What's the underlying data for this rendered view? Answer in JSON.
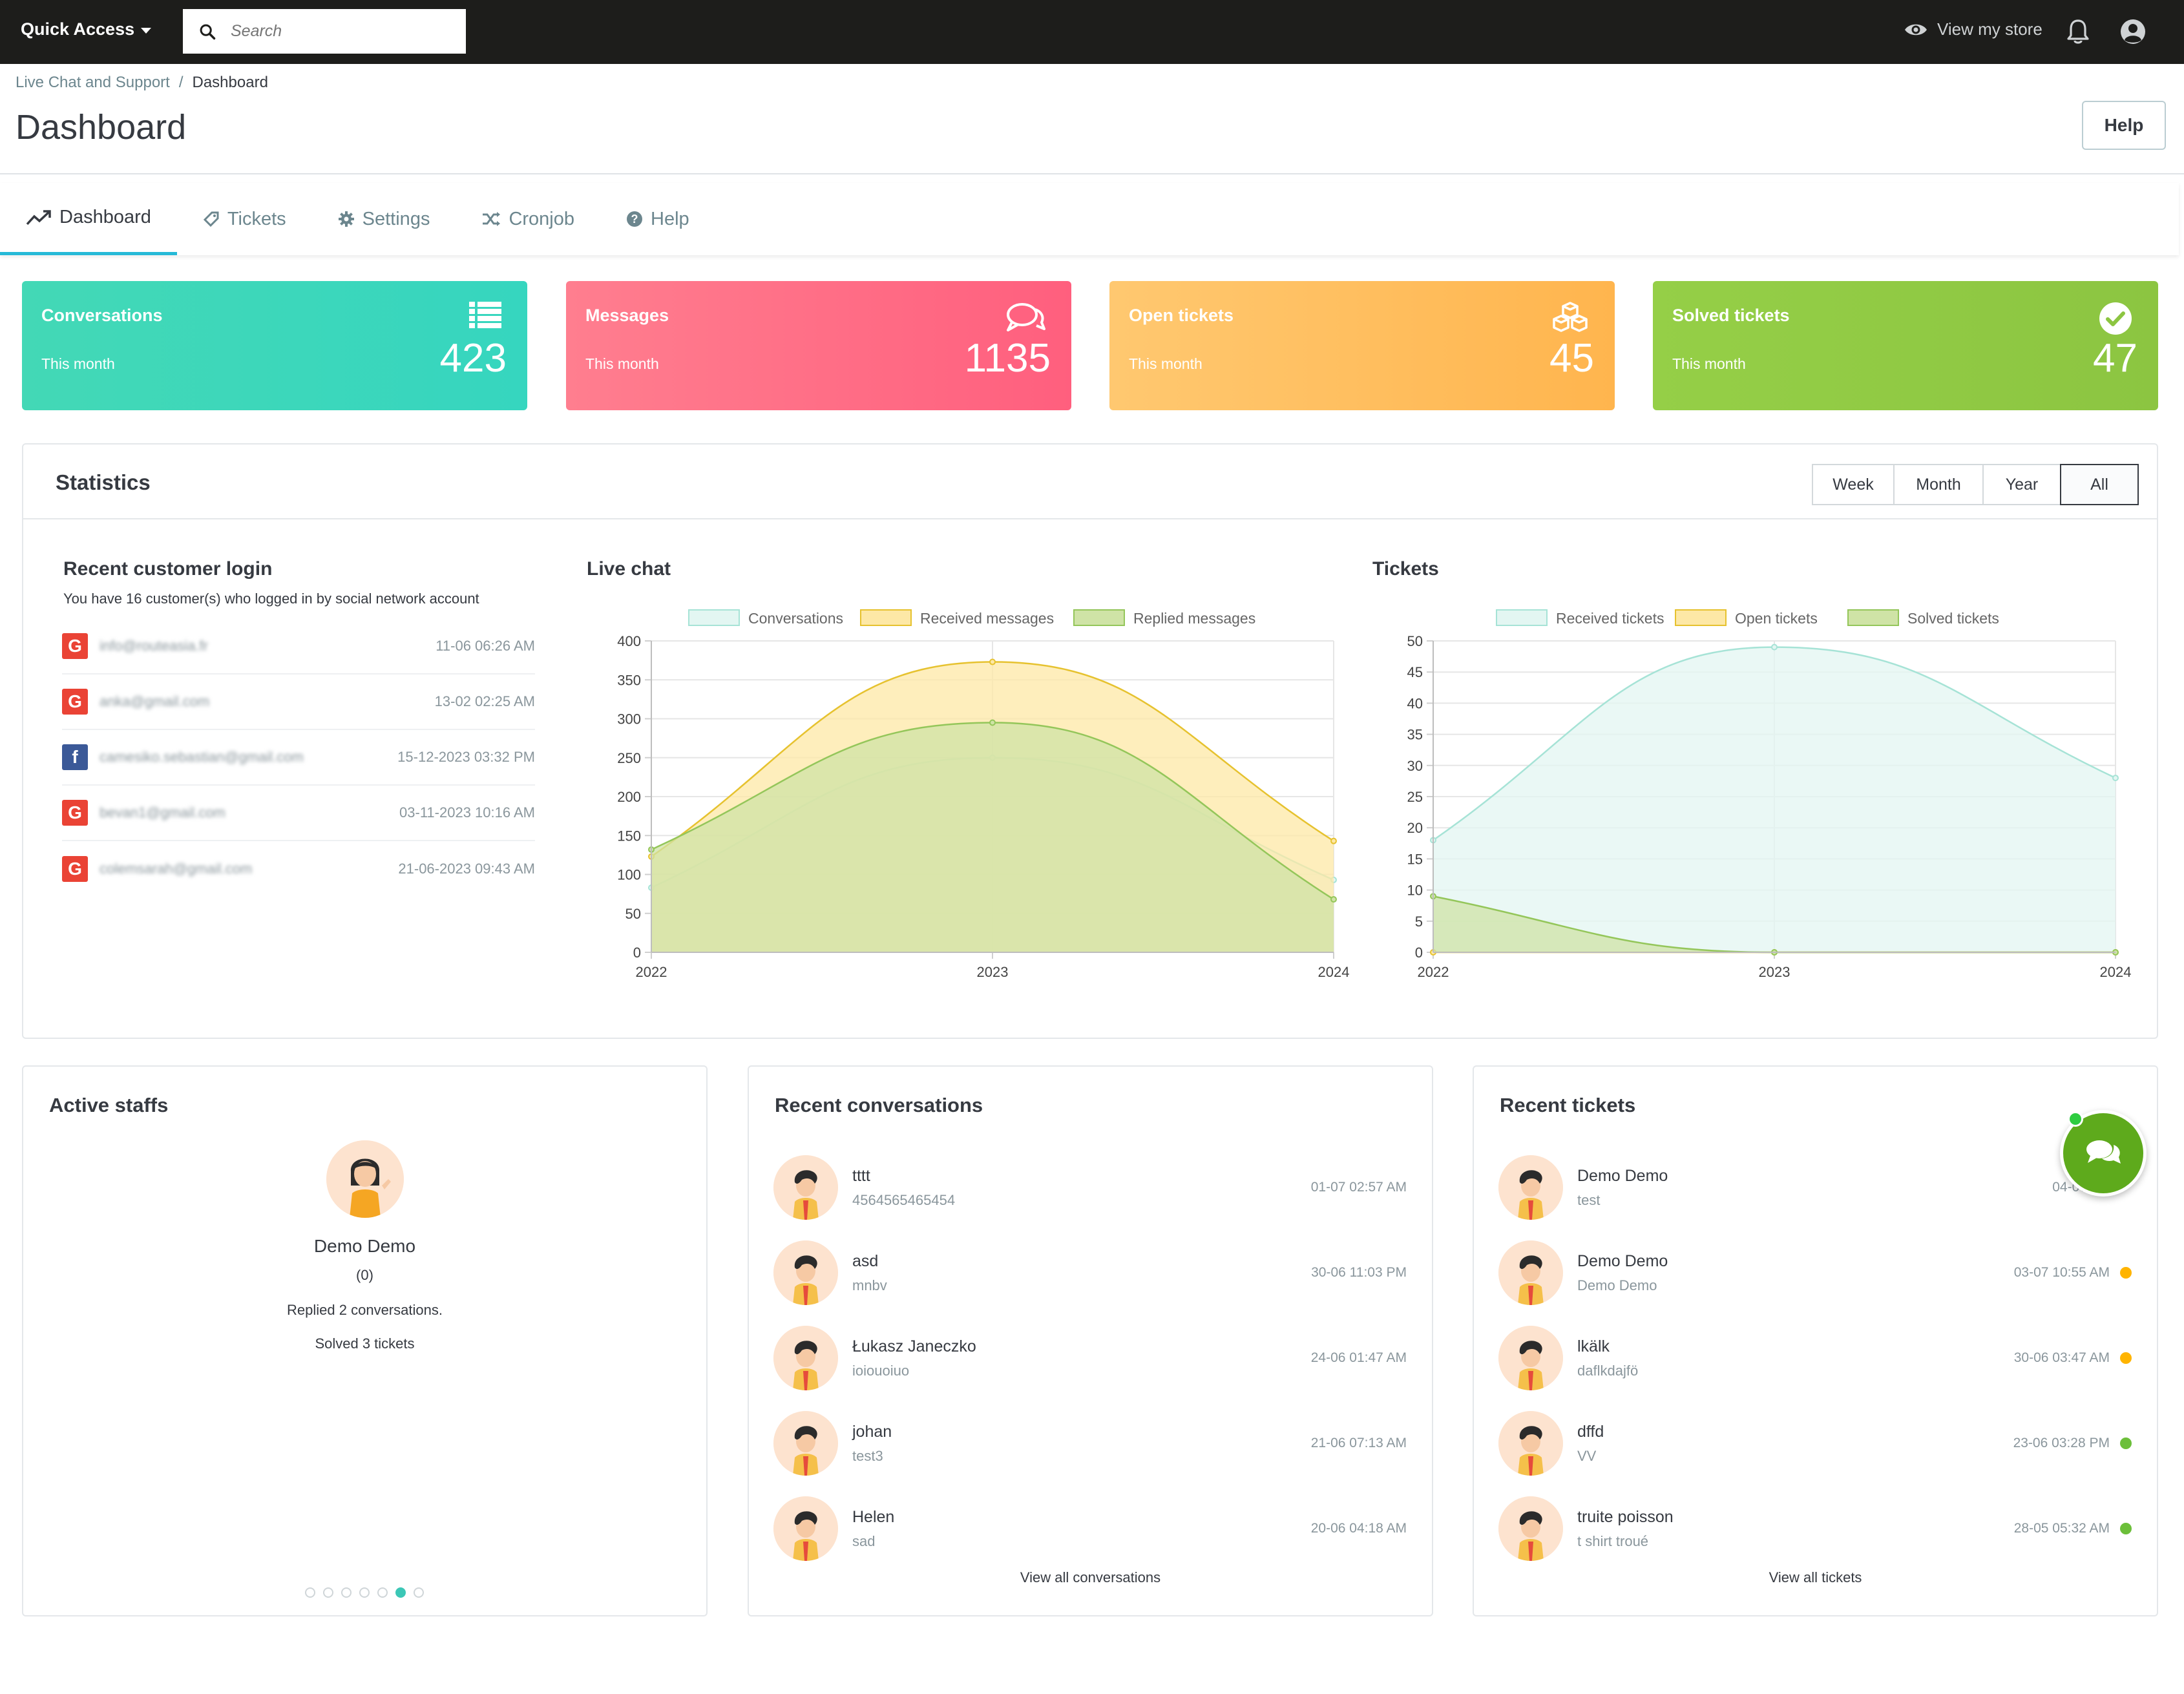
{
  "topbar": {
    "quick_access": "Quick Access",
    "search_placeholder": "Search",
    "view_store": "View my store"
  },
  "header": {
    "breadcrumb_parent": "Live Chat and Support",
    "breadcrumb_current": "Dashboard",
    "title": "Dashboard",
    "help_label": "Help"
  },
  "tabs": [
    {
      "label": "Dashboard",
      "icon": "trend-icon",
      "active": true
    },
    {
      "label": "Tickets",
      "icon": "tag-icon",
      "active": false
    },
    {
      "label": "Settings",
      "icon": "gear-icon",
      "active": false
    },
    {
      "label": "Cronjob",
      "icon": "shuffle-icon",
      "active": false
    },
    {
      "label": "Help",
      "icon": "question-icon",
      "active": false
    }
  ],
  "cards": [
    {
      "label": "Conversations",
      "sub": "This month",
      "value": "423",
      "icon": "list-icon",
      "color": "#3dd7bb"
    },
    {
      "label": "Messages",
      "sub": "This month",
      "value": "1135",
      "icon": "comments-icon",
      "color": "#ff6f86"
    },
    {
      "label": "Open tickets",
      "sub": "This month",
      "value": "45",
      "icon": "cubes-icon",
      "color": "#ffbf5f"
    },
    {
      "label": "Solved tickets",
      "sub": "This month",
      "value": "47",
      "icon": "check-circle-icon",
      "color": "#90ca44"
    }
  ],
  "statistics": {
    "title": "Statistics",
    "periods": [
      {
        "label": "Week",
        "active": false
      },
      {
        "label": "Month",
        "active": false
      },
      {
        "label": "Year",
        "active": false
      },
      {
        "label": "All",
        "active": true
      }
    ]
  },
  "recent_login": {
    "title": "Recent customer login",
    "description": "You have 16 customer(s) who logged in by social network account",
    "rows": [
      {
        "network": "google",
        "email": "info@routeasia.fr",
        "date": "11-06 06:26 AM"
      },
      {
        "network": "google",
        "email": "anka@gmail.com",
        "date": "13-02 02:25 AM"
      },
      {
        "network": "facebook",
        "email": "camesiko.sebastian@gmail.com",
        "date": "15-12-2023 03:32 PM"
      },
      {
        "network": "google",
        "email": "bevan1@gmail.com",
        "date": "03-11-2023 10:16 AM"
      },
      {
        "network": "google",
        "email": "colemsarah@gmail.com",
        "date": "21-06-2023 09:43 AM"
      }
    ]
  },
  "live_chat_title": "Live chat",
  "tickets_title": "Tickets",
  "chart_data": [
    {
      "type": "area",
      "title": "Live chat",
      "x": [
        "2022",
        "2023",
        "2024"
      ],
      "ylim": [
        0,
        400
      ],
      "yticks": [
        0,
        50,
        100,
        150,
        200,
        250,
        300,
        350,
        400
      ],
      "legend": "top",
      "series": [
        {
          "name": "Conversations",
          "values": [
            83,
            250,
            93
          ],
          "color": "#a6e3d6",
          "fill": "#e3f6f2"
        },
        {
          "name": "Received messages",
          "values": [
            123,
            373,
            143
          ],
          "color": "#e6c22f",
          "fill": "#fde8a6"
        },
        {
          "name": "Replied messages",
          "values": [
            132,
            295,
            68
          ],
          "color": "#94c65a",
          "fill": "#cfe3a6"
        }
      ]
    },
    {
      "type": "area",
      "title": "Tickets",
      "x": [
        "2022",
        "2023",
        "2024"
      ],
      "ylim": [
        0,
        50
      ],
      "yticks": [
        0,
        5,
        10,
        15,
        20,
        25,
        30,
        35,
        40,
        45,
        50
      ],
      "legend": "top",
      "series": [
        {
          "name": "Received tickets",
          "values": [
            18,
            49,
            28
          ],
          "color": "#a6e3d6",
          "fill": "#e3f6f2"
        },
        {
          "name": "Open tickets",
          "values": [
            0,
            0,
            0
          ],
          "color": "#e6c22f",
          "fill": "#fde8a6"
        },
        {
          "name": "Solved tickets",
          "values": [
            9,
            0,
            0
          ],
          "color": "#94c65a",
          "fill": "#cfe3a6"
        }
      ]
    }
  ],
  "active_staffs": {
    "title": "Active staffs",
    "name": "Demo Demo",
    "count": "(0)",
    "replied": "Replied 2 conversations.",
    "solved": "Solved 3 tickets",
    "active_slide": 6,
    "slides": 7
  },
  "recent_conversations": {
    "title": "Recent conversations",
    "rows": [
      {
        "name": "tttt",
        "sub": "4564565465454",
        "date": "01-07 02:57 AM"
      },
      {
        "name": "asd",
        "sub": "mnbv",
        "date": "30-06 11:03 PM"
      },
      {
        "name": "Łukasz Janeczko",
        "sub": "ioiouoiuo",
        "date": "24-06 01:47 AM"
      },
      {
        "name": "johan",
        "sub": "test3",
        "date": "21-06 07:13 AM"
      },
      {
        "name": "Helen",
        "sub": "sad",
        "date": "20-06 04:18 AM"
      }
    ],
    "view_all": "View all conversations"
  },
  "recent_tickets": {
    "title": "Recent tickets",
    "rows": [
      {
        "name": "Demo Demo",
        "sub": "test",
        "date": "04-07 04:",
        "status_color": ""
      },
      {
        "name": "Demo Demo",
        "sub": "Demo Demo",
        "date": "03-07 10:55 AM",
        "status_color": "#ffb400"
      },
      {
        "name": "lkälk",
        "sub": "daflkdajfö",
        "date": "30-06 03:47 AM",
        "status_color": "#ffb400"
      },
      {
        "name": "dffd",
        "sub": "VV",
        "date": "23-06 03:28 PM",
        "status_color": "#6cbf3a"
      },
      {
        "name": "truite poisson",
        "sub": "t shirt troué",
        "date": "28-05 05:32 AM",
        "status_color": "#6cbf3a"
      }
    ],
    "view_all": "View all tickets"
  },
  "chat_fab_icon": "chat-bubbles-icon"
}
